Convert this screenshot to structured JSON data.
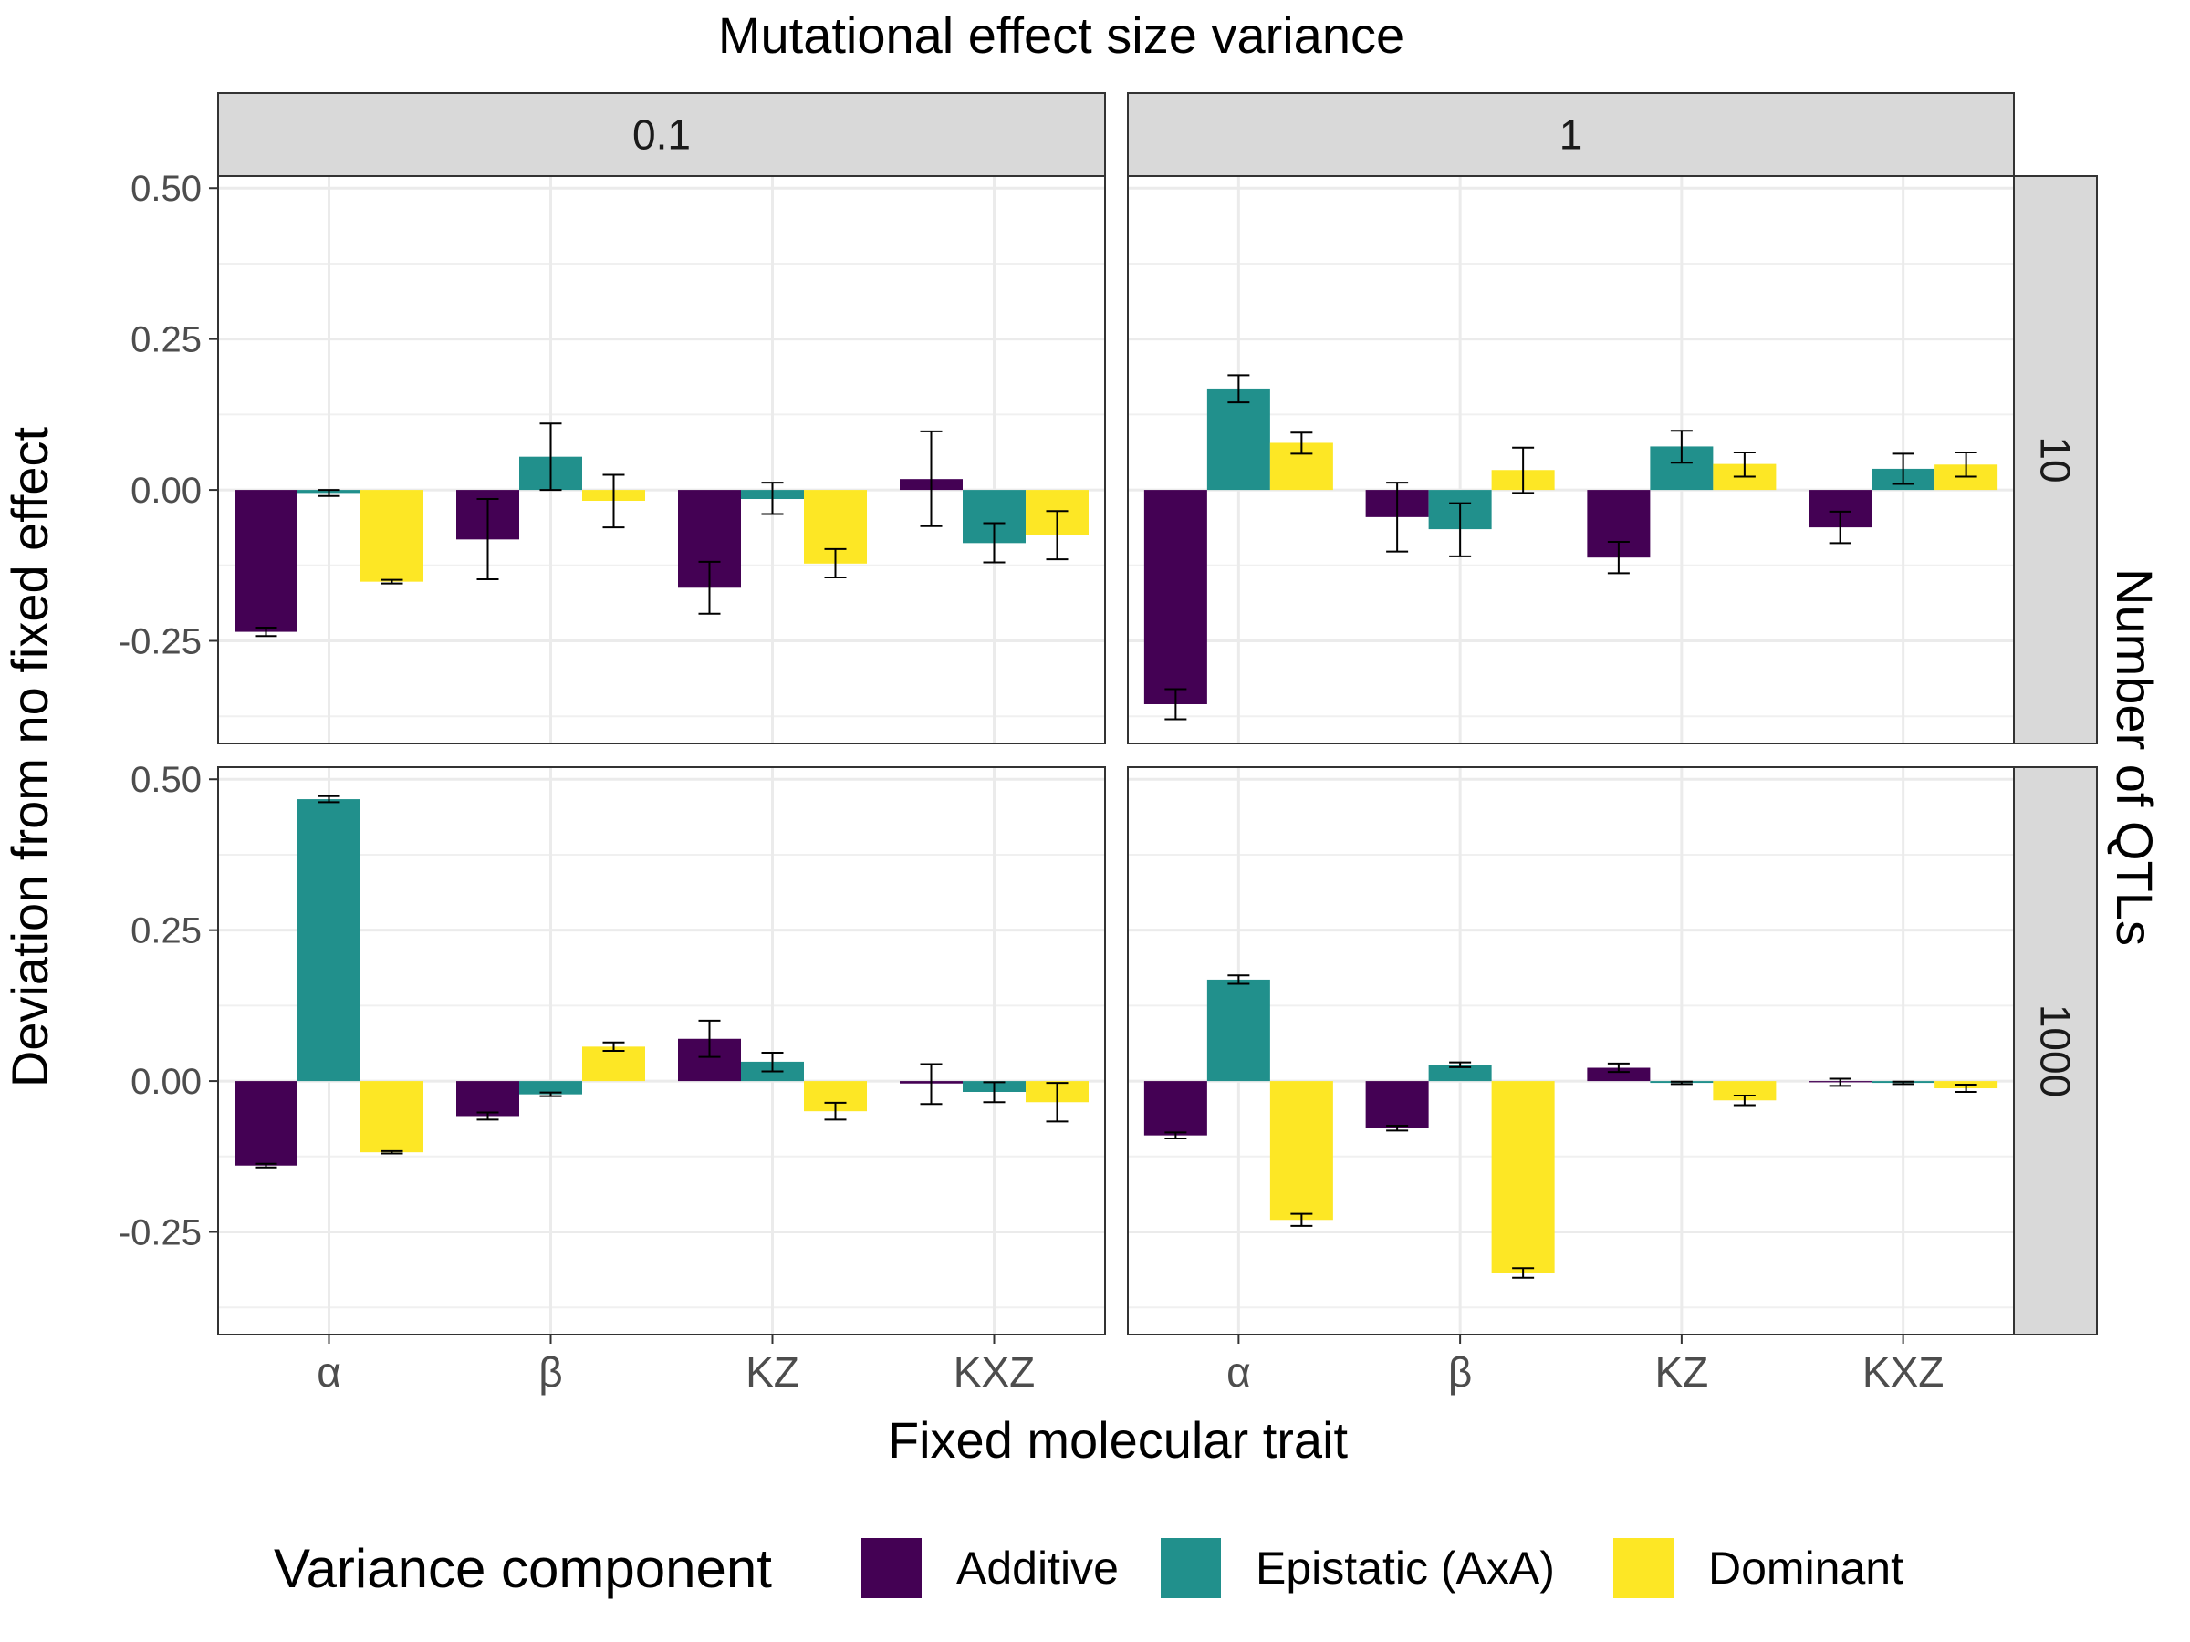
{
  "chart_data": {
    "type": "bar",
    "title": "Mutational effect size variance",
    "xlabel": "Fixed molecular trait",
    "ylabel": "Deviation from no fixed effect",
    "facet_row_label": "Number of QTLs",
    "col_facets": [
      "0.1",
      "1"
    ],
    "row_facets": [
      "10",
      "1000"
    ],
    "categories": [
      "α",
      "β",
      "KZ",
      "KXZ"
    ],
    "y_ticks": [
      "0.50",
      "0.25",
      "0.00",
      "-0.25"
    ],
    "y_tick_values": [
      0.5,
      0.25,
      0.0,
      -0.25
    ],
    "ylim": [
      -0.42,
      0.52
    ],
    "grid": true,
    "legend": {
      "title": "Variance component",
      "position": "bottom",
      "entries": [
        "Additive",
        "Epistatic (AxA)",
        "Dominant"
      ]
    },
    "colors": {
      "Additive": "#440154",
      "Epistatic (AxA)": "#21908C",
      "Dominant": "#FDE725"
    },
    "panels": [
      {
        "col": "0.1",
        "row": "10",
        "series": [
          {
            "name": "Additive",
            "values": [
              -0.235,
              -0.082,
              -0.162,
              0.018
            ],
            "err_low": [
              -0.242,
              -0.148,
              -0.205,
              -0.06
            ],
            "err_high": [
              -0.228,
              -0.015,
              -0.119,
              0.097
            ]
          },
          {
            "name": "Epistatic (AxA)",
            "values": [
              -0.005,
              0.055,
              -0.015,
              -0.088
            ],
            "err_low": [
              -0.01,
              0.0,
              -0.04,
              -0.12
            ],
            "err_high": [
              0.0,
              0.11,
              0.012,
              -0.055
            ]
          },
          {
            "name": "Dominant",
            "values": [
              -0.152,
              -0.018,
              -0.122,
              -0.075
            ],
            "err_low": [
              -0.155,
              -0.062,
              -0.145,
              -0.115
            ],
            "err_high": [
              -0.149,
              0.025,
              -0.098,
              -0.035
            ]
          }
        ]
      },
      {
        "col": "1",
        "row": "10",
        "series": [
          {
            "name": "Additive",
            "values": [
              -0.355,
              -0.045,
              -0.112,
              -0.062
            ],
            "err_low": [
              -0.38,
              -0.102,
              -0.138,
              -0.088
            ],
            "err_high": [
              -0.33,
              0.012,
              -0.086,
              -0.036
            ]
          },
          {
            "name": "Epistatic (AxA)",
            "values": [
              0.168,
              -0.065,
              0.072,
              0.035
            ],
            "err_low": [
              0.145,
              -0.11,
              0.045,
              0.01
            ],
            "err_high": [
              0.19,
              -0.022,
              0.098,
              0.06
            ]
          },
          {
            "name": "Dominant",
            "values": [
              0.078,
              0.033,
              0.043,
              0.042
            ],
            "err_low": [
              0.06,
              -0.005,
              0.022,
              0.022
            ],
            "err_high": [
              0.095,
              0.07,
              0.062,
              0.062
            ]
          }
        ]
      },
      {
        "col": "0.1",
        "row": "1000",
        "series": [
          {
            "name": "Additive",
            "values": [
              -0.14,
              -0.058,
              0.07,
              -0.004
            ],
            "err_low": [
              -0.143,
              -0.064,
              0.04,
              -0.038
            ],
            "err_high": [
              -0.137,
              -0.052,
              0.1,
              0.028
            ]
          },
          {
            "name": "Epistatic (AxA)",
            "values": [
              0.467,
              -0.022,
              0.032,
              -0.018
            ],
            "err_low": [
              0.462,
              -0.025,
              0.016,
              -0.035
            ],
            "err_high": [
              0.472,
              -0.019,
              0.047,
              -0.002
            ]
          },
          {
            "name": "Dominant",
            "values": [
              -0.118,
              0.057,
              -0.05,
              -0.035
            ],
            "err_low": [
              -0.12,
              0.05,
              -0.064,
              -0.067
            ],
            "err_high": [
              -0.116,
              0.064,
              -0.036,
              -0.003
            ]
          }
        ]
      },
      {
        "col": "1",
        "row": "1000",
        "series": [
          {
            "name": "Additive",
            "values": [
              -0.09,
              -0.078,
              0.022,
              -0.002
            ],
            "err_low": [
              -0.095,
              -0.082,
              0.015,
              -0.008
            ],
            "err_high": [
              -0.085,
              -0.074,
              0.029,
              0.004
            ]
          },
          {
            "name": "Epistatic (AxA)",
            "values": [
              0.168,
              0.027,
              -0.003,
              -0.003
            ],
            "err_low": [
              0.161,
              0.023,
              -0.005,
              -0.005
            ],
            "err_high": [
              0.175,
              0.031,
              -0.001,
              -0.001
            ]
          },
          {
            "name": "Dominant",
            "values": [
              -0.23,
              -0.318,
              -0.032,
              -0.012
            ],
            "err_low": [
              -0.24,
              -0.326,
              -0.04,
              -0.018
            ],
            "err_high": [
              -0.22,
              -0.31,
              -0.024,
              -0.006
            ]
          }
        ]
      }
    ]
  }
}
